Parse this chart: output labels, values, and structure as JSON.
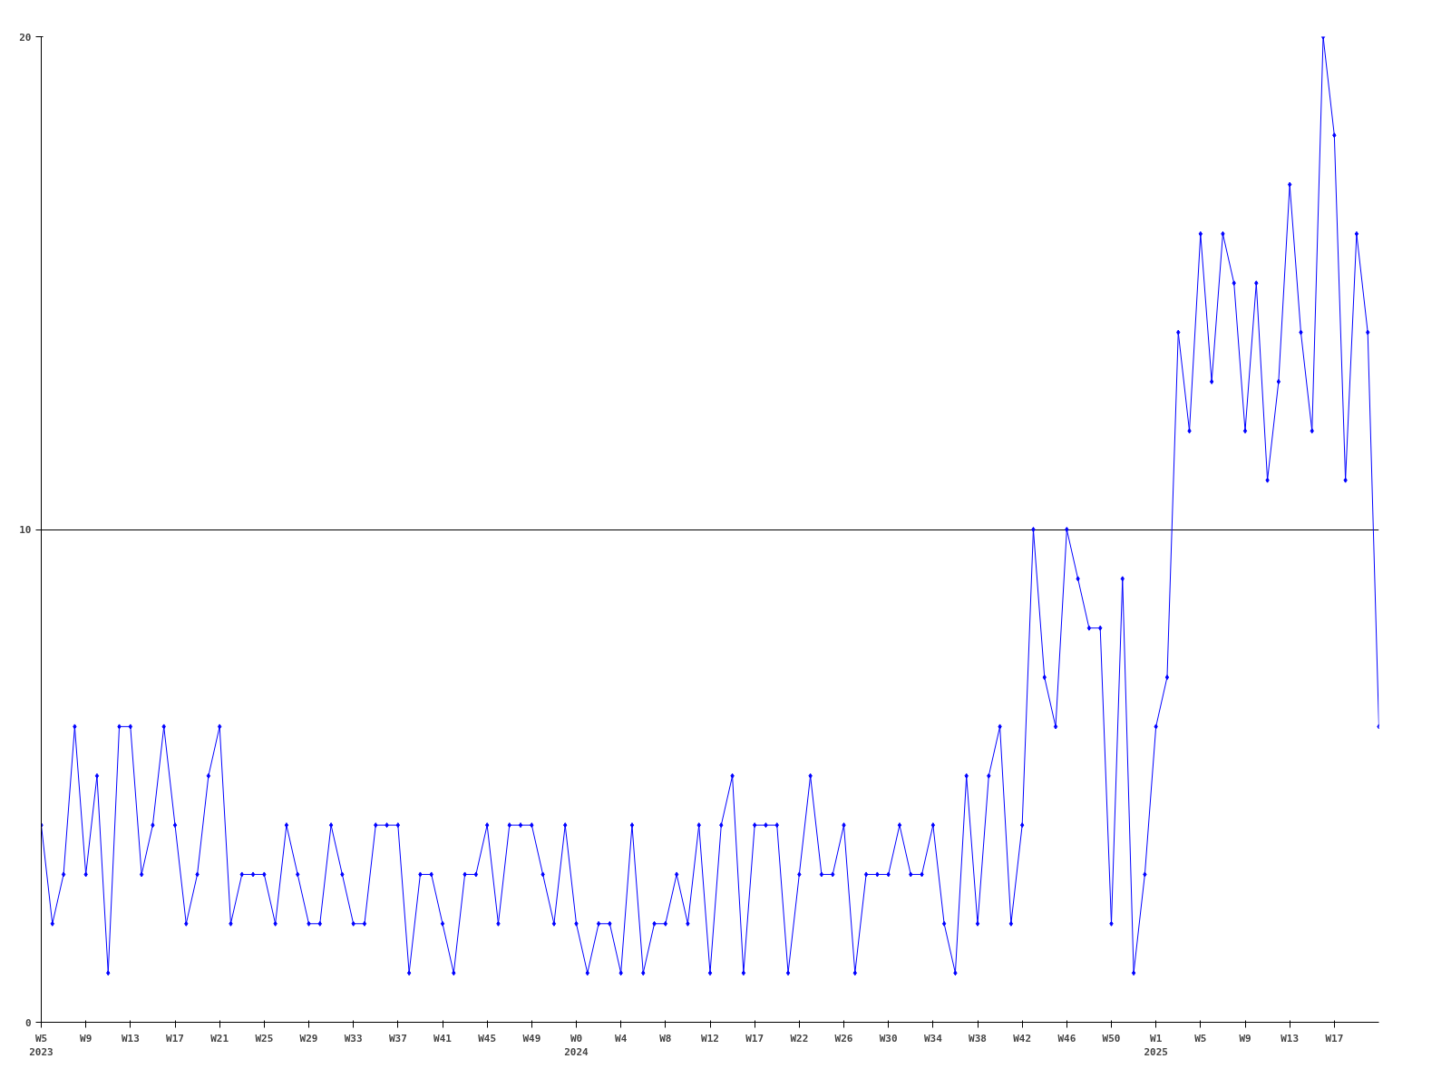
{
  "chart_data": {
    "type": "line",
    "categories": [
      "W5\n2023",
      null,
      null,
      null,
      "W9",
      null,
      null,
      null,
      "W13",
      null,
      null,
      null,
      "W17",
      null,
      null,
      null,
      "W21",
      null,
      null,
      null,
      "W25",
      null,
      null,
      null,
      "W29",
      null,
      null,
      null,
      "W33",
      null,
      null,
      null,
      "W37",
      null,
      null,
      null,
      "W41",
      null,
      null,
      null,
      "W45",
      null,
      null,
      null,
      "W49",
      null,
      null,
      null,
      "W0\n2024",
      null,
      null,
      null,
      "W4",
      null,
      null,
      null,
      "W8",
      null,
      null,
      null,
      "W12",
      null,
      null,
      null,
      "W17",
      null,
      null,
      null,
      "W22",
      null,
      null,
      null,
      "W26",
      null,
      null,
      null,
      "W30",
      null,
      null,
      null,
      "W34",
      null,
      null,
      null,
      "W38",
      null,
      null,
      null,
      "W42",
      null,
      null,
      null,
      "W46",
      null,
      null,
      null,
      "W50",
      null,
      null,
      null,
      "W1\n2025",
      null,
      null,
      null,
      "W5",
      null,
      null,
      null,
      "W9",
      null,
      null,
      null,
      "W13",
      null,
      null,
      null,
      "W17",
      null,
      null,
      null,
      null
    ],
    "series": [
      {
        "color": "#0000ff",
        "values": [
          4,
          2,
          3,
          6,
          3,
          5,
          1,
          6,
          6,
          3,
          4,
          6,
          4,
          2,
          3,
          5,
          6,
          2,
          3,
          3,
          3,
          2,
          4,
          3,
          2,
          2,
          4,
          3,
          2,
          2,
          4,
          4,
          4,
          1,
          3,
          3,
          2,
          1,
          3,
          3,
          4,
          2,
          4,
          4,
          4,
          3,
          2,
          4,
          2,
          1,
          2,
          2,
          1,
          4,
          1,
          2,
          2,
          3,
          2,
          4,
          1,
          4,
          5,
          1,
          4,
          4,
          4,
          1,
          3,
          5,
          3,
          3,
          4,
          1,
          3,
          3,
          3,
          4,
          3,
          3,
          4,
          2,
          1,
          5,
          2,
          5,
          6,
          2,
          4,
          10,
          7,
          6,
          10,
          9,
          8,
          8,
          2,
          9,
          1,
          3,
          6,
          7,
          14,
          12,
          16,
          13,
          16,
          15,
          12,
          15,
          11,
          13,
          17,
          14,
          12,
          20,
          18,
          11,
          16,
          14,
          6
        ]
      }
    ],
    "ylim": [
      0,
      20
    ],
    "yticks": [
      0,
      10,
      20
    ],
    "grid": "y",
    "marker": "diamond",
    "line_style": "solid"
  }
}
